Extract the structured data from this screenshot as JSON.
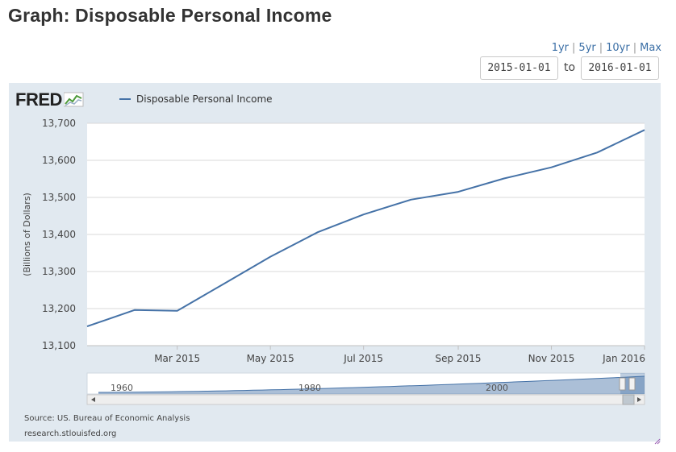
{
  "page": {
    "title": "Graph: Disposable Personal Income"
  },
  "range_links": [
    "1yr",
    "5yr",
    "10yr",
    "Max"
  ],
  "date_range": {
    "start": "2015-01-01",
    "to_label": "to",
    "end": "2016-01-01"
  },
  "chart": {
    "logo": "FRED",
    "source": "Source: US. Bureau of Economic Analysis",
    "site": "research.stlouisfed.org",
    "colors": {
      "line": "#4572a7",
      "panel": "#e1e9f0",
      "navigator": "#4572a7"
    }
  },
  "navigator": {
    "labels": [
      "1960",
      "1980",
      "2000"
    ]
  },
  "chart_data": {
    "type": "line",
    "title": "",
    "xlabel": "",
    "ylabel": "(Billions of Dollars)",
    "ylim": [
      13100,
      13700
    ],
    "yticks": [
      13100,
      13200,
      13300,
      13400,
      13500,
      13600,
      13700
    ],
    "ytick_labels": [
      "13,100",
      "13,200",
      "13,300",
      "13,400",
      "13,500",
      "13,600",
      "13,700"
    ],
    "xtick_labels": [
      "Mar 2015",
      "May 2015",
      "Jul 2015",
      "Sep 2015",
      "Nov 2015",
      "Jan 2016"
    ],
    "xtick_dates": [
      "2015-03-01",
      "2015-05-01",
      "2015-07-01",
      "2015-09-01",
      "2015-11-01",
      "2016-01-01"
    ],
    "grid": true,
    "legend": "top-left",
    "series": [
      {
        "name": "Disposable Personal Income",
        "x": [
          "2015-01-01",
          "2015-02-01",
          "2015-03-01",
          "2015-04-01",
          "2015-05-01",
          "2015-06-01",
          "2015-07-01",
          "2015-08-01",
          "2015-09-01",
          "2015-10-01",
          "2015-11-01",
          "2015-12-01",
          "2016-01-01"
        ],
        "values": [
          13152,
          13196,
          13194,
          13268,
          13340,
          13406,
          13454,
          13494,
          13515,
          13551,
          13581,
          13621,
          13682
        ]
      }
    ]
  }
}
